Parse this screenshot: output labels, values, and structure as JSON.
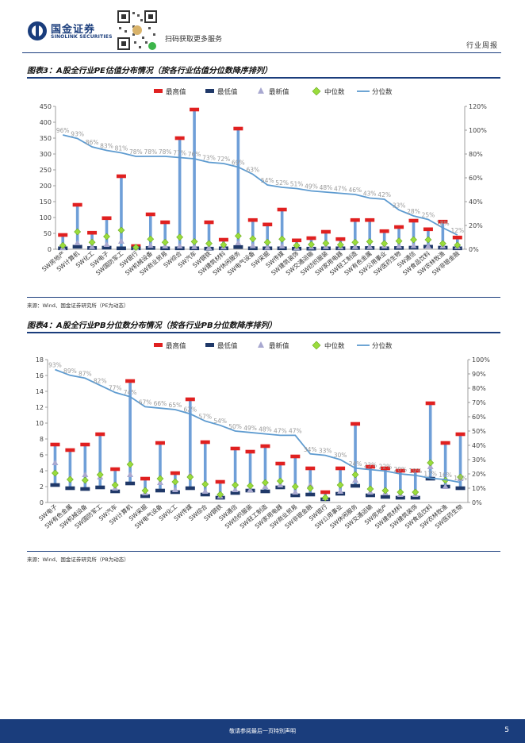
{
  "header": {
    "company_cn": "国金证券",
    "company_en": "SINOLINK SECURITIES",
    "qr_caption": "扫码获取更多服务",
    "doc_type": "行业周报"
  },
  "figure3": {
    "title": "图表3：A股全行业PE估值分布情况（按各行业估值分位数降序排列）",
    "source": "来源：Wind、国金证券研究所（PE为动态）"
  },
  "figure4": {
    "title": "图表4：A股全行业PB分位数分布情况（按各行业PB分位数降序排列）",
    "source": "来源：Wind、国金证券研究所（PB为动态）"
  },
  "footer": {
    "disclaimer": "敬请参阅最后一页特别声明",
    "page": "5"
  },
  "colors": {
    "max": "#e02020",
    "min": "#1f3868",
    "latest": "#a8a8d0",
    "median": "#9adc3c",
    "percentile": "#5e9bd0",
    "bar": "#6f9fd8",
    "brand": "#1a3d7c"
  },
  "chart_data": [
    {
      "type": "line",
      "id": "pe",
      "legend": [
        "最高值",
        "最低值",
        "最新值",
        "中位数",
        "分位数"
      ],
      "categories": [
        "SW房地产",
        "SW计算机",
        "SW化工",
        "SW电子",
        "SW国防军工",
        "SW银行",
        "SW机械设备",
        "SW商业贸易",
        "SW综合",
        "SW汽车",
        "SW钢铁",
        "SW建筑材料",
        "SW休闲服务",
        "SW电气设备",
        "SW采掘",
        "SW传媒",
        "SW建筑装饰",
        "SW交通运输",
        "SW纺织服装",
        "SW家用电器",
        "SW轻工制造",
        "SW有色金属",
        "SW公用事业",
        "SW医药生物",
        "SW通信",
        "SW食品饮料",
        "SW农林牧渔",
        "SW非银金融"
      ],
      "max": [
        45,
        140,
        52,
        98,
        230,
        10,
        110,
        85,
        350,
        440,
        85,
        30,
        380,
        92,
        78,
        125,
        28,
        35,
        55,
        32,
        92,
        92,
        57,
        70,
        90,
        63,
        87,
        37
      ],
      "min": [
        3,
        8,
        4,
        5,
        3,
        3,
        4,
        3,
        3,
        3,
        2,
        3,
        7,
        3,
        3,
        3,
        2,
        2,
        3,
        3,
        4,
        4,
        3,
        4,
        5,
        8,
        5,
        3
      ],
      "latest": [
        5,
        20,
        8,
        15,
        25,
        5,
        12,
        10,
        10,
        8,
        5,
        7,
        20,
        11,
        6,
        10,
        5,
        7,
        8,
        7,
        8,
        8,
        10,
        10,
        11,
        10,
        10,
        8
      ],
      "median": [
        12,
        55,
        22,
        40,
        60,
        6,
        32,
        22,
        38,
        24,
        18,
        14,
        42,
        33,
        22,
        32,
        12,
        15,
        19,
        14,
        22,
        24,
        18,
        26,
        30,
        30,
        18,
        13
      ],
      "percentile_labels": [
        "96%",
        "93%",
        "86%",
        "83%",
        "81%",
        "78%",
        "78%",
        "78%",
        "77%",
        "76%",
        "73%",
        "72%",
        "69%",
        "63%",
        "54%",
        "52%",
        "51%",
        "49%",
        "48%",
        "47%",
        "46%",
        "43%",
        "42%",
        "33%",
        "28%",
        "25%",
        "18%",
        "12%"
      ],
      "percentile": [
        96,
        93,
        86,
        83,
        81,
        78,
        78,
        78,
        77,
        76,
        73,
        72,
        69,
        63,
        54,
        52,
        51,
        49,
        48,
        47,
        46,
        43,
        42,
        33,
        28,
        25,
        18,
        12
      ],
      "ylim": [
        0,
        450
      ],
      "yticks": [
        0,
        50,
        100,
        150,
        200,
        250,
        300,
        350,
        400,
        450
      ],
      "ylim_right": [
        0,
        120
      ],
      "yticks_right": [
        "0%",
        "20%",
        "40%",
        "60%",
        "80%",
        "100%",
        "120%"
      ]
    },
    {
      "type": "line",
      "id": "pb",
      "legend": [
        "最高值",
        "最低值",
        "最新值",
        "中位数",
        "分位数"
      ],
      "categories": [
        "SW电子",
        "SW有色金属",
        "SW机械设备",
        "SW国防军工",
        "SW汽车",
        "SW计算机",
        "SW采掘",
        "SW电气设备",
        "SW化工",
        "SW传媒",
        "SW综合",
        "SW钢铁",
        "SW通信",
        "SW纺织服装",
        "SW轻工制造",
        "SW家用电器",
        "SW商业贸易",
        "SW非银金融",
        "SW银行",
        "SW公用事业",
        "SW休闲服务",
        "SW交通运输",
        "SW房地产",
        "SW建筑材料",
        "SW建筑装饰",
        "SW食品饮料",
        "SW农林牧渔",
        "SW医药生物"
      ],
      "max": [
        7.3,
        6.6,
        7.3,
        8.6,
        4.2,
        15.3,
        3.0,
        7.5,
        3.7,
        13,
        7.6,
        2.6,
        6.8,
        6.4,
        7.1,
        4.9,
        5.8,
        4.3,
        1.3,
        4.3,
        9.9,
        4.5,
        4.3,
        4.0,
        4.0,
        12.5,
        7.5,
        8.6
      ],
      "min": [
        2.2,
        1.8,
        1.7,
        1.9,
        1.4,
        2.4,
        0.8,
        1.5,
        1.3,
        1.8,
        1.0,
        0.6,
        1.2,
        1.5,
        1.4,
        1.9,
        0.9,
        1.0,
        0.4,
        1.1,
        2.1,
        0.9,
        0.7,
        0.6,
        0.6,
        3.0,
        2.0,
        1.8
      ],
      "latest": [
        5.0,
        3.1,
        3.5,
        3.2,
        1.8,
        3.5,
        1.2,
        2.5,
        1.6,
        3.5,
        1.4,
        0.8,
        1.6,
        1.6,
        2.0,
        2.2,
        1.3,
        2.2,
        0.6,
        1.4,
        2.8,
        1.3,
        1.2,
        1.0,
        1.0,
        4.5,
        2.0,
        3.0
      ],
      "median": [
        3.7,
        2.9,
        2.8,
        3.5,
        2.2,
        4.8,
        1.5,
        3.0,
        2.6,
        3.2,
        2.3,
        1.0,
        2.2,
        2.1,
        2.5,
        2.7,
        2.0,
        1.8,
        0.6,
        2.2,
        3.5,
        1.7,
        1.5,
        1.3,
        1.3,
        5.0,
        2.8,
        3.2
      ],
      "percentile_labels": [
        "93%",
        "89%",
        "87%",
        "82%",
        "77%",
        "74%",
        "67%",
        "66%",
        "65%",
        "62%",
        "57%",
        "54%",
        "50%",
        "49%",
        "48%",
        "47%",
        "47%",
        "34%",
        "33%",
        "30%",
        "24%",
        "23%",
        "22%",
        "20%",
        "19%",
        "17%",
        "16%",
        "14%"
      ],
      "percentile": [
        93,
        89,
        87,
        82,
        77,
        74,
        67,
        66,
        65,
        62,
        57,
        54,
        50,
        49,
        48,
        47,
        47,
        34,
        33,
        30,
        24,
        23,
        22,
        20,
        19,
        17,
        16,
        14
      ],
      "ylim": [
        0,
        18
      ],
      "yticks": [
        0,
        2,
        4,
        6,
        8,
        10,
        12,
        14,
        16,
        18
      ],
      "ylim_right": [
        0,
        100
      ],
      "yticks_right": [
        "0%",
        "10%",
        "20%",
        "30%",
        "40%",
        "50%",
        "60%",
        "70%",
        "80%",
        "90%",
        "100%"
      ]
    }
  ]
}
